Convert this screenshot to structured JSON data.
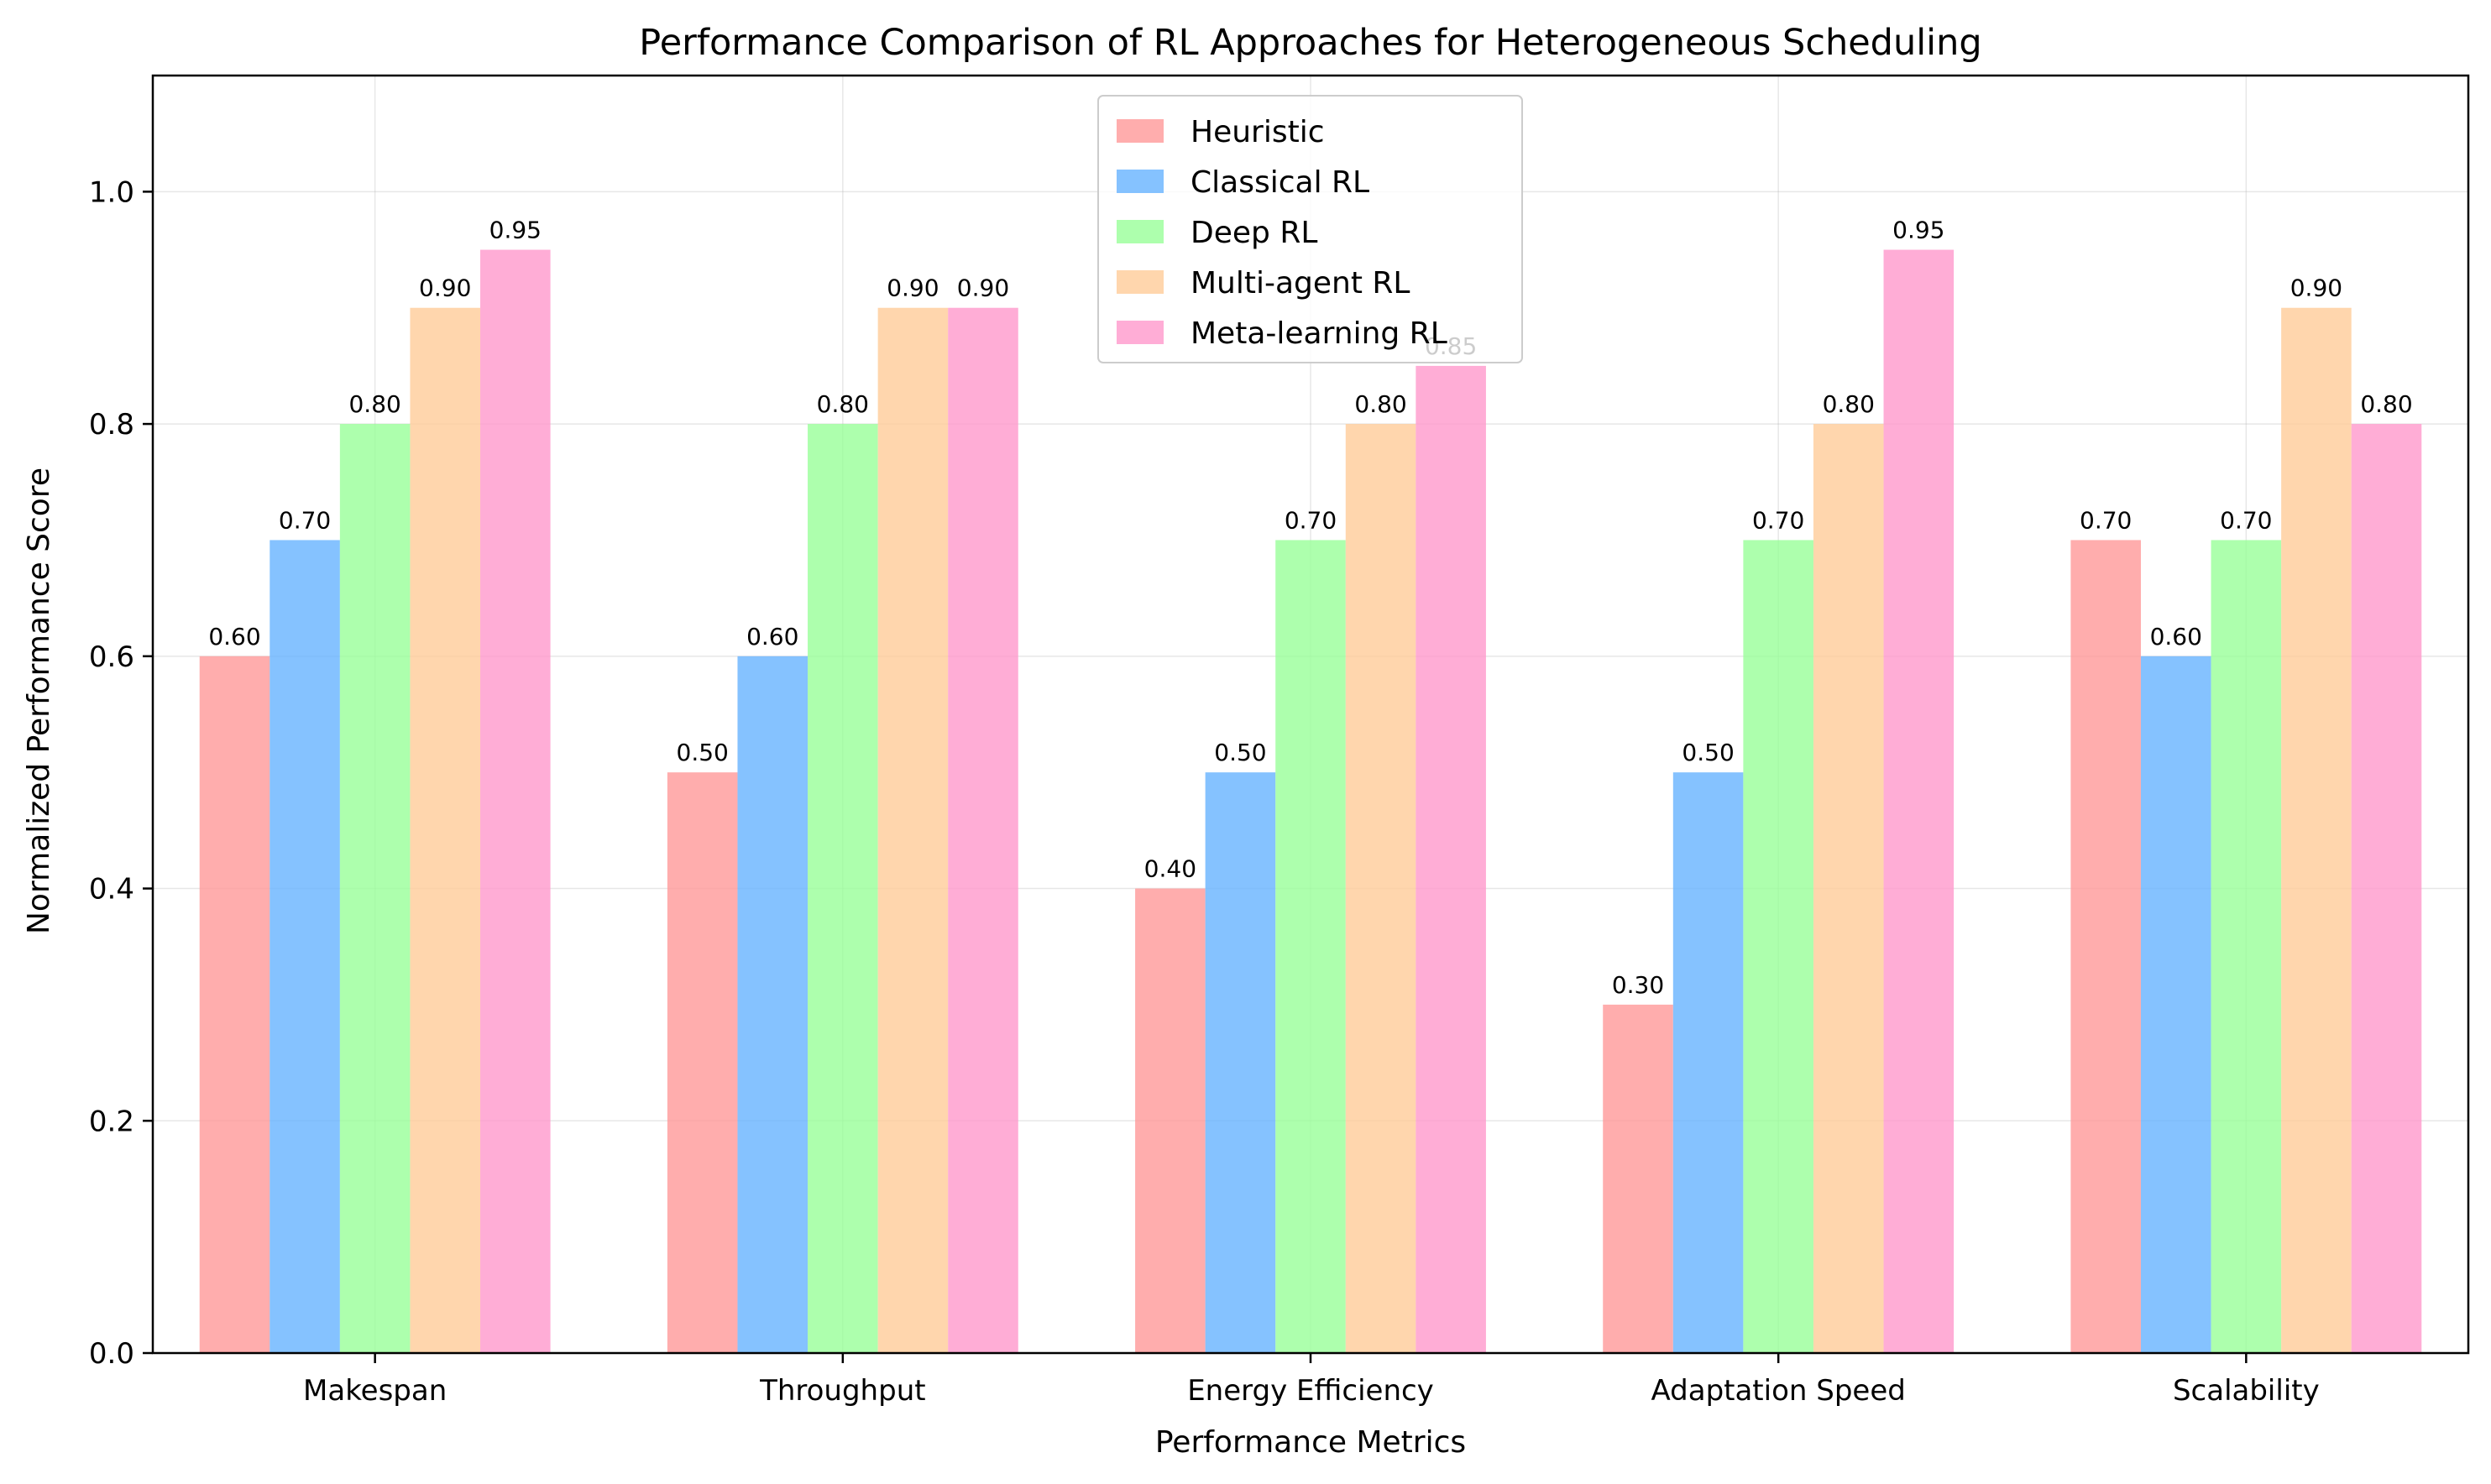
{
  "chart_data": {
    "type": "bar",
    "title": "Performance Comparison of RL Approaches for Heterogeneous Scheduling",
    "xlabel": "Performance Metrics",
    "ylabel": "Normalized Performance Score",
    "categories": [
      "Makespan",
      "Throughput",
      "Energy Efficiency",
      "Adaptation Speed",
      "Scalability"
    ],
    "series": [
      {
        "name": "Heuristic",
        "color": "#ff9999",
        "values": [
          0.6,
          0.5,
          0.4,
          0.3,
          0.7
        ]
      },
      {
        "name": "Classical RL",
        "color": "#66b3ff",
        "values": [
          0.7,
          0.6,
          0.5,
          0.5,
          0.6
        ]
      },
      {
        "name": "Deep RL",
        "color": "#99ff99",
        "values": [
          0.8,
          0.8,
          0.7,
          0.7,
          0.7
        ]
      },
      {
        "name": "Multi-agent RL",
        "color": "#ffcc99",
        "values": [
          0.9,
          0.9,
          0.8,
          0.8,
          0.9
        ]
      },
      {
        "name": "Meta-learning RL",
        "color": "#ff99cc",
        "values": [
          0.95,
          0.9,
          0.85,
          0.95,
          0.8
        ]
      }
    ],
    "ylim": [
      0,
      1.1
    ],
    "yticks": [
      0.0,
      0.2,
      0.4,
      0.6,
      0.8,
      1.0
    ],
    "ytick_labels": [
      "0.0",
      "0.2",
      "0.4",
      "0.6",
      "0.8",
      "1.0"
    ],
    "bar_labels": [
      [
        "0.60",
        "0.50",
        "0.40",
        "0.30",
        "0.70"
      ],
      [
        "0.70",
        "0.60",
        "0.50",
        "0.50",
        "0.60"
      ],
      [
        "0.80",
        "0.80",
        "0.70",
        "0.70",
        "0.70"
      ],
      [
        "0.90",
        "0.90",
        "0.80",
        "0.80",
        "0.90"
      ],
      [
        "0.95",
        "0.90",
        "0.85",
        "0.95",
        "0.80"
      ]
    ],
    "grid": true,
    "legend_position": "upper-center",
    "bar_opacity": 0.8
  }
}
